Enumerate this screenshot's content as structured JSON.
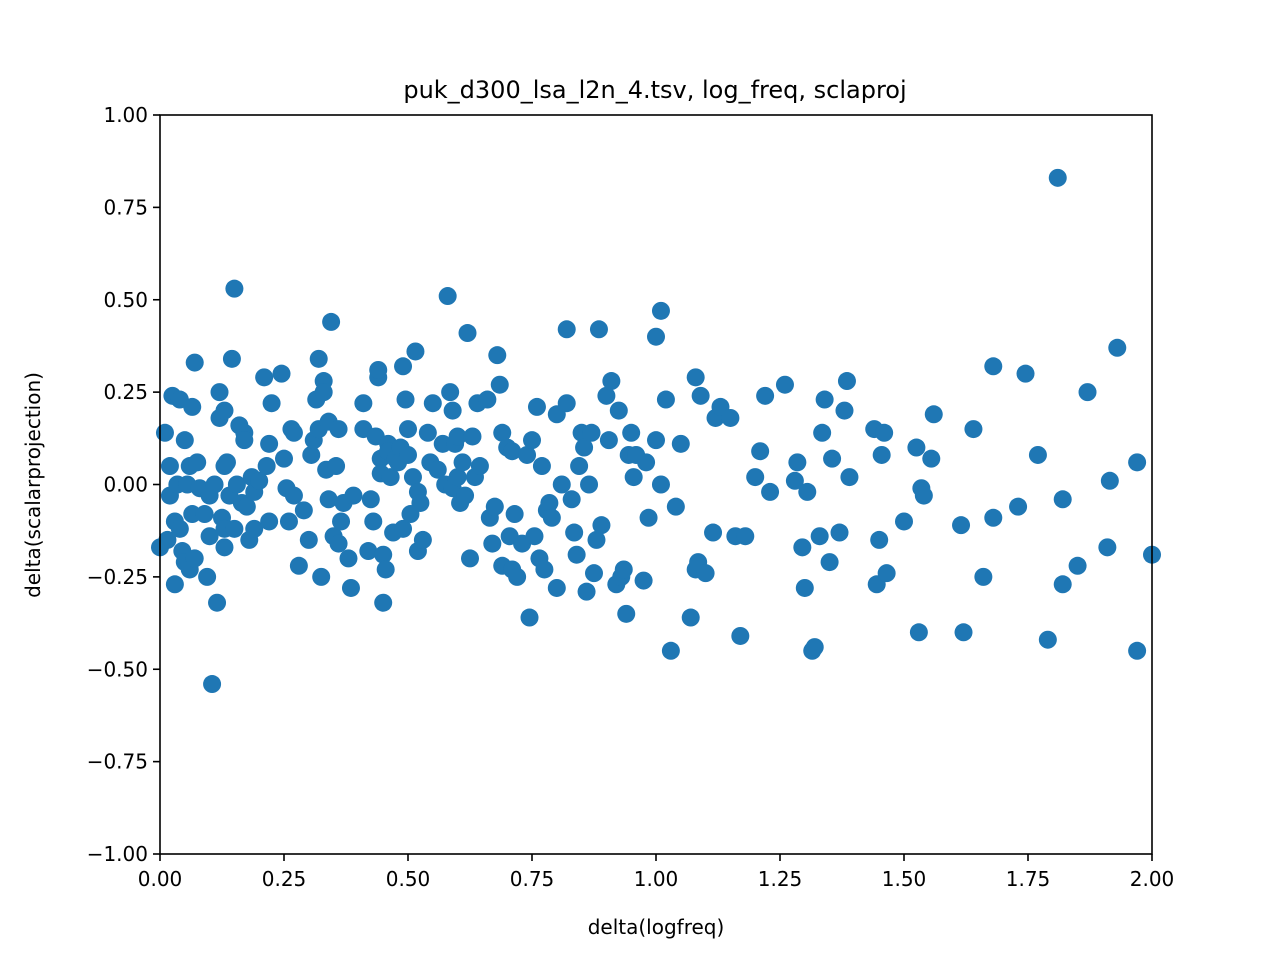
{
  "chart_data": {
    "type": "scatter",
    "title": "puk_d300_lsa_l2n_4.tsv, log_freq, sclaproj",
    "xlabel": "delta(logfreq)",
    "ylabel": "delta(scalarprojection)",
    "xlim": [
      0,
      2
    ],
    "ylim": [
      -1,
      1
    ],
    "xticks": [
      "0.00",
      "0.25",
      "0.50",
      "0.75",
      "1.00",
      "1.25",
      "1.50",
      "1.75",
      "2.00"
    ],
    "yticks": [
      "−1.00",
      "−0.75",
      "−0.50",
      "−0.25",
      "0.00",
      "0.25",
      "0.50",
      "0.75",
      "1.00"
    ],
    "grid": false,
    "marker_color": "#1f77b4",
    "points": [
      [
        0.0,
        -0.17
      ],
      [
        0.01,
        0.14
      ],
      [
        0.015,
        -0.15
      ],
      [
        0.02,
        0.05
      ],
      [
        0.02,
        -0.03
      ],
      [
        0.025,
        0.24
      ],
      [
        0.03,
        -0.1
      ],
      [
        0.03,
        -0.27
      ],
      [
        0.035,
        0.0
      ],
      [
        0.04,
        0.23
      ],
      [
        0.04,
        -0.12
      ],
      [
        0.045,
        -0.18
      ],
      [
        0.05,
        0.12
      ],
      [
        0.05,
        -0.21
      ],
      [
        0.055,
        0.0
      ],
      [
        0.06,
        0.05
      ],
      [
        0.06,
        -0.23
      ],
      [
        0.065,
        0.21
      ],
      [
        0.065,
        -0.08
      ],
      [
        0.07,
        0.33
      ],
      [
        0.07,
        -0.2
      ],
      [
        0.075,
        0.06
      ],
      [
        0.08,
        -0.01
      ],
      [
        0.09,
        -0.08
      ],
      [
        0.095,
        -0.25
      ],
      [
        0.1,
        -0.03
      ],
      [
        0.1,
        -0.14
      ],
      [
        0.105,
        -0.54
      ],
      [
        0.11,
        0.0
      ],
      [
        0.115,
        -0.32
      ],
      [
        0.12,
        0.25
      ],
      [
        0.12,
        0.18
      ],
      [
        0.125,
        -0.09
      ],
      [
        0.13,
        0.2
      ],
      [
        0.13,
        0.05
      ],
      [
        0.13,
        -0.12
      ],
      [
        0.13,
        -0.17
      ],
      [
        0.135,
        0.06
      ],
      [
        0.14,
        -0.03
      ],
      [
        0.145,
        0.34
      ],
      [
        0.15,
        0.53
      ],
      [
        0.15,
        -0.12
      ],
      [
        0.155,
        0.0
      ],
      [
        0.16,
        0.16
      ],
      [
        0.165,
        -0.05
      ],
      [
        0.17,
        0.14
      ],
      [
        0.17,
        0.12
      ],
      [
        0.175,
        -0.06
      ],
      [
        0.18,
        -0.15
      ],
      [
        0.185,
        0.02
      ],
      [
        0.19,
        -0.02
      ],
      [
        0.19,
        -0.12
      ],
      [
        0.2,
        0.01
      ],
      [
        0.21,
        0.29
      ],
      [
        0.215,
        0.05
      ],
      [
        0.22,
        0.11
      ],
      [
        0.22,
        -0.1
      ],
      [
        0.225,
        0.22
      ],
      [
        0.245,
        0.3
      ],
      [
        0.25,
        0.07
      ],
      [
        0.255,
        -0.01
      ],
      [
        0.26,
        -0.1
      ],
      [
        0.265,
        0.15
      ],
      [
        0.27,
        -0.03
      ],
      [
        0.27,
        0.14
      ],
      [
        0.28,
        -0.22
      ],
      [
        0.29,
        -0.07
      ],
      [
        0.3,
        -0.15
      ],
      [
        0.305,
        0.08
      ],
      [
        0.31,
        0.12
      ],
      [
        0.315,
        0.23
      ],
      [
        0.32,
        0.34
      ],
      [
        0.32,
        0.15
      ],
      [
        0.325,
        -0.25
      ],
      [
        0.33,
        0.28
      ],
      [
        0.33,
        0.25
      ],
      [
        0.335,
        0.04
      ],
      [
        0.34,
        0.17
      ],
      [
        0.34,
        -0.04
      ],
      [
        0.345,
        0.44
      ],
      [
        0.35,
        -0.14
      ],
      [
        0.355,
        0.05
      ],
      [
        0.36,
        -0.16
      ],
      [
        0.36,
        0.15
      ],
      [
        0.365,
        -0.1
      ],
      [
        0.37,
        -0.05
      ],
      [
        0.38,
        -0.2
      ],
      [
        0.385,
        -0.28
      ],
      [
        0.39,
        -0.03
      ],
      [
        0.41,
        0.22
      ],
      [
        0.41,
        0.15
      ],
      [
        0.42,
        -0.18
      ],
      [
        0.425,
        -0.04
      ],
      [
        0.43,
        -0.1
      ],
      [
        0.435,
        0.13
      ],
      [
        0.44,
        0.29
      ],
      [
        0.44,
        0.31
      ],
      [
        0.445,
        0.07
      ],
      [
        0.445,
        0.03
      ],
      [
        0.45,
        -0.19
      ],
      [
        0.45,
        -0.32
      ],
      [
        0.455,
        -0.23
      ],
      [
        0.46,
        0.11
      ],
      [
        0.46,
        0.09
      ],
      [
        0.465,
        0.02
      ],
      [
        0.47,
        -0.13
      ],
      [
        0.475,
        0.07
      ],
      [
        0.48,
        0.06
      ],
      [
        0.485,
        0.1
      ],
      [
        0.49,
        -0.12
      ],
      [
        0.49,
        0.32
      ],
      [
        0.495,
        0.23
      ],
      [
        0.5,
        0.15
      ],
      [
        0.5,
        0.08
      ],
      [
        0.505,
        -0.08
      ],
      [
        0.51,
        0.02
      ],
      [
        0.515,
        0.36
      ],
      [
        0.52,
        -0.02
      ],
      [
        0.52,
        -0.18
      ],
      [
        0.525,
        -0.05
      ],
      [
        0.53,
        -0.15
      ],
      [
        0.54,
        0.14
      ],
      [
        0.545,
        0.06
      ],
      [
        0.55,
        0.22
      ],
      [
        0.56,
        0.04
      ],
      [
        0.57,
        0.11
      ],
      [
        0.575,
        0.0
      ],
      [
        0.58,
        0.51
      ],
      [
        0.585,
        0.25
      ],
      [
        0.59,
        0.2
      ],
      [
        0.59,
        -0.01
      ],
      [
        0.595,
        0.11
      ],
      [
        0.6,
        0.02
      ],
      [
        0.6,
        0.13
      ],
      [
        0.605,
        -0.05
      ],
      [
        0.61,
        0.06
      ],
      [
        0.615,
        -0.03
      ],
      [
        0.62,
        0.41
      ],
      [
        0.625,
        -0.2
      ],
      [
        0.63,
        0.13
      ],
      [
        0.635,
        0.02
      ],
      [
        0.64,
        0.22
      ],
      [
        0.645,
        0.05
      ],
      [
        0.66,
        0.23
      ],
      [
        0.665,
        -0.09
      ],
      [
        0.67,
        -0.16
      ],
      [
        0.675,
        -0.06
      ],
      [
        0.68,
        0.35
      ],
      [
        0.685,
        0.27
      ],
      [
        0.69,
        0.14
      ],
      [
        0.69,
        -0.22
      ],
      [
        0.7,
        0.1
      ],
      [
        0.705,
        -0.14
      ],
      [
        0.71,
        0.09
      ],
      [
        0.71,
        -0.23
      ],
      [
        0.715,
        -0.08
      ],
      [
        0.72,
        -0.25
      ],
      [
        0.73,
        -0.16
      ],
      [
        0.74,
        0.08
      ],
      [
        0.745,
        -0.36
      ],
      [
        0.75,
        0.12
      ],
      [
        0.755,
        -0.14
      ],
      [
        0.76,
        0.21
      ],
      [
        0.765,
        -0.2
      ],
      [
        0.77,
        0.05
      ],
      [
        0.775,
        -0.23
      ],
      [
        0.78,
        -0.07
      ],
      [
        0.785,
        -0.05
      ],
      [
        0.79,
        -0.09
      ],
      [
        0.8,
        0.19
      ],
      [
        0.8,
        -0.28
      ],
      [
        0.81,
        0.0
      ],
      [
        0.82,
        0.42
      ],
      [
        0.82,
        0.22
      ],
      [
        0.83,
        -0.04
      ],
      [
        0.835,
        -0.13
      ],
      [
        0.84,
        -0.19
      ],
      [
        0.845,
        0.05
      ],
      [
        0.85,
        0.14
      ],
      [
        0.855,
        0.1
      ],
      [
        0.86,
        -0.29
      ],
      [
        0.865,
        0.0
      ],
      [
        0.87,
        0.14
      ],
      [
        0.875,
        -0.24
      ],
      [
        0.88,
        -0.15
      ],
      [
        0.885,
        0.42
      ],
      [
        0.89,
        -0.11
      ],
      [
        0.9,
        0.24
      ],
      [
        0.905,
        0.12
      ],
      [
        0.91,
        0.28
      ],
      [
        0.92,
        -0.27
      ],
      [
        0.925,
        0.2
      ],
      [
        0.93,
        -0.25
      ],
      [
        0.935,
        -0.23
      ],
      [
        0.94,
        -0.35
      ],
      [
        0.945,
        0.08
      ],
      [
        0.95,
        0.14
      ],
      [
        0.955,
        0.02
      ],
      [
        0.96,
        0.08
      ],
      [
        0.975,
        -0.26
      ],
      [
        0.98,
        0.06
      ],
      [
        0.985,
        -0.09
      ],
      [
        1.0,
        0.4
      ],
      [
        1.0,
        0.12
      ],
      [
        1.01,
        0.47
      ],
      [
        1.01,
        0.0
      ],
      [
        1.02,
        0.23
      ],
      [
        1.03,
        -0.45
      ],
      [
        1.04,
        -0.06
      ],
      [
        1.05,
        0.11
      ],
      [
        1.07,
        -0.36
      ],
      [
        1.08,
        0.29
      ],
      [
        1.08,
        -0.23
      ],
      [
        1.085,
        -0.21
      ],
      [
        1.09,
        0.24
      ],
      [
        1.1,
        -0.24
      ],
      [
        1.115,
        -0.13
      ],
      [
        1.12,
        0.18
      ],
      [
        1.13,
        0.21
      ],
      [
        1.15,
        0.18
      ],
      [
        1.16,
        -0.14
      ],
      [
        1.17,
        -0.41
      ],
      [
        1.18,
        -0.14
      ],
      [
        1.2,
        0.02
      ],
      [
        1.21,
        0.09
      ],
      [
        1.22,
        0.24
      ],
      [
        1.23,
        -0.02
      ],
      [
        1.26,
        0.27
      ],
      [
        1.28,
        0.01
      ],
      [
        1.285,
        0.06
      ],
      [
        1.295,
        -0.17
      ],
      [
        1.3,
        -0.28
      ],
      [
        1.305,
        -0.02
      ],
      [
        1.315,
        -0.45
      ],
      [
        1.32,
        -0.44
      ],
      [
        1.33,
        -0.14
      ],
      [
        1.335,
        0.14
      ],
      [
        1.34,
        0.23
      ],
      [
        1.35,
        -0.21
      ],
      [
        1.355,
        0.07
      ],
      [
        1.37,
        -0.13
      ],
      [
        1.38,
        0.2
      ],
      [
        1.385,
        0.28
      ],
      [
        1.39,
        0.02
      ],
      [
        1.44,
        0.15
      ],
      [
        1.445,
        -0.27
      ],
      [
        1.45,
        -0.15
      ],
      [
        1.455,
        0.08
      ],
      [
        1.46,
        0.14
      ],
      [
        1.465,
        -0.24
      ],
      [
        1.5,
        -0.1
      ],
      [
        1.525,
        0.1
      ],
      [
        1.53,
        -0.4
      ],
      [
        1.535,
        -0.01
      ],
      [
        1.54,
        -0.03
      ],
      [
        1.555,
        0.07
      ],
      [
        1.56,
        0.19
      ],
      [
        1.615,
        -0.11
      ],
      [
        1.62,
        -0.4
      ],
      [
        1.64,
        0.15
      ],
      [
        1.66,
        -0.25
      ],
      [
        1.68,
        0.32
      ],
      [
        1.68,
        -0.09
      ],
      [
        1.73,
        -0.06
      ],
      [
        1.745,
        0.3
      ],
      [
        1.77,
        0.08
      ],
      [
        1.79,
        -0.42
      ],
      [
        1.81,
        0.83
      ],
      [
        1.82,
        -0.27
      ],
      [
        1.82,
        -0.04
      ],
      [
        1.85,
        -0.22
      ],
      [
        1.87,
        0.25
      ],
      [
        1.91,
        -0.17
      ],
      [
        1.915,
        0.01
      ],
      [
        1.93,
        0.37
      ],
      [
        1.97,
        0.06
      ],
      [
        1.97,
        -0.45
      ],
      [
        2.0,
        -0.19
      ]
    ]
  }
}
